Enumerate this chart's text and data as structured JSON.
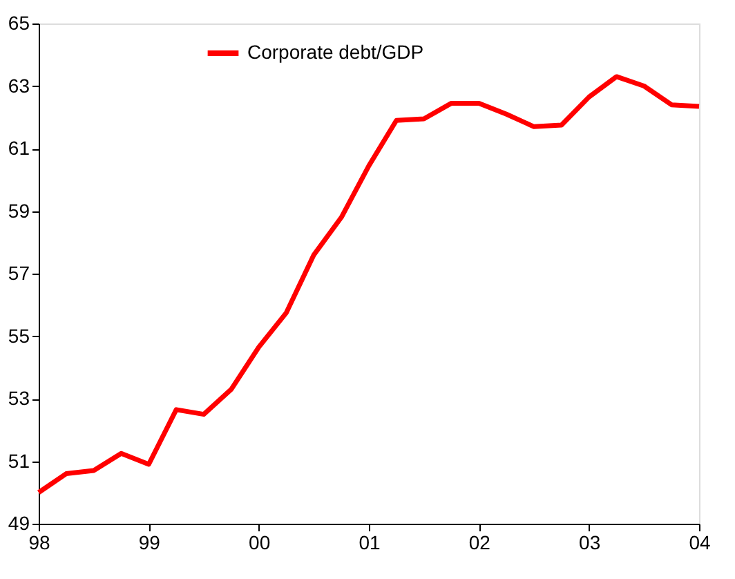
{
  "chart_data": {
    "type": "line",
    "x": [
      1998,
      1998.25,
      1998.5,
      1998.75,
      1999,
      1999.25,
      1999.5,
      1999.75,
      2000,
      2000.25,
      2000.5,
      2000.75,
      2001,
      2001.25,
      2001.5,
      2001.75,
      2002,
      2002.25,
      2002.5,
      2002.75,
      2003,
      2003.25,
      2003.5,
      2003.75,
      2004
    ],
    "series": [
      {
        "name": "Corporate debt/GDP",
        "color": "#ff0000",
        "values": [
          50.0,
          50.6,
          50.7,
          51.25,
          50.9,
          52.65,
          52.5,
          53.3,
          54.65,
          55.75,
          57.6,
          58.8,
          60.45,
          61.9,
          61.95,
          62.45,
          62.45,
          62.1,
          61.7,
          61.75,
          62.65,
          63.3,
          63.0,
          62.4,
          62.35
        ]
      }
    ],
    "xlim": [
      1998,
      2004
    ],
    "xticks": [
      {
        "value": 1998,
        "label": "98"
      },
      {
        "value": 1999,
        "label": "99"
      },
      {
        "value": 2000,
        "label": "00"
      },
      {
        "value": 2001,
        "label": "01"
      },
      {
        "value": 2002,
        "label": "02"
      },
      {
        "value": 2003,
        "label": "03"
      },
      {
        "value": 2004,
        "label": "04"
      }
    ],
    "ylim": [
      49,
      65
    ],
    "yticks": [
      49,
      51,
      53,
      55,
      57,
      59,
      61,
      63,
      65
    ],
    "grid": false,
    "legend": "top left",
    "marker": "none",
    "line_style": "solid"
  }
}
